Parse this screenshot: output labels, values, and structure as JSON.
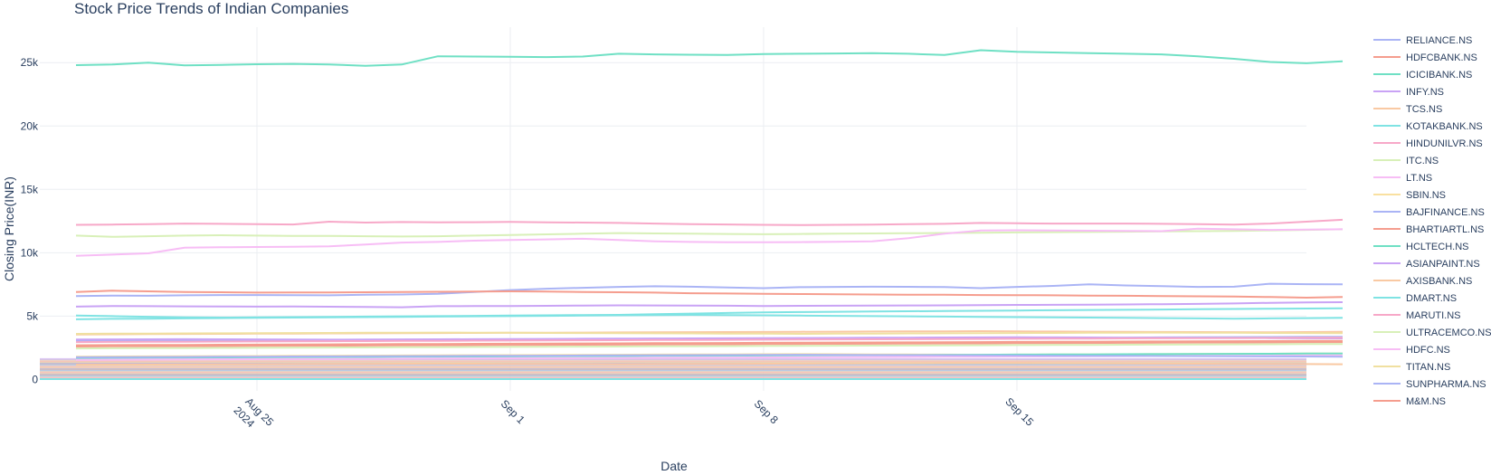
{
  "chart_data": {
    "type": "line",
    "title": "Stock Price Trends of Indian Companies",
    "xlabel": "Date",
    "ylabel": "Closing Price(INR)",
    "x_start": "2024-08-20",
    "x_end": "2024-09-23",
    "xlim": [
      "2024-08-19",
      "2024-09-23"
    ],
    "ylim": [
      -900,
      27800
    ],
    "x_ticks": [
      {
        "date": "2024-08-25",
        "label": "Aug 25",
        "sub": "2024"
      },
      {
        "date": "2024-09-01",
        "label": "Sep 1",
        "sub": ""
      },
      {
        "date": "2024-09-08",
        "label": "Sep 8",
        "sub": ""
      },
      {
        "date": "2024-09-15",
        "label": "Sep 15",
        "sub": ""
      }
    ],
    "y_ticks": [
      {
        "value": 0,
        "label": "0"
      },
      {
        "value": 5000,
        "label": "5k"
      },
      {
        "value": 10000,
        "label": "10k"
      },
      {
        "value": 15000,
        "label": "15k"
      },
      {
        "value": 20000,
        "label": "20k"
      },
      {
        "value": 25000,
        "label": "25k"
      }
    ],
    "grid": true,
    "legend_position": "right",
    "series": [
      {
        "name": "RELIANCE.NS",
        "color": "#aab4f5",
        "values": [
          6580,
          6620,
          6600,
          6640,
          6660,
          6660,
          6650,
          6640,
          6680,
          6700,
          6760,
          6900,
          7050,
          7160,
          7230,
          7300,
          7350,
          7320,
          7260,
          7200,
          7280,
          7300,
          7320,
          7310,
          7290,
          7200,
          7300,
          7380,
          7500,
          7420,
          7360,
          7300,
          7320,
          7550,
          7520,
          7500
        ]
      },
      {
        "name": "HDFCBANK.NS",
        "color": "#f59d8e",
        "values": [
          6900,
          7000,
          6950,
          6900,
          6880,
          6850,
          6870,
          6860,
          6880,
          6900,
          6920,
          6930,
          6950,
          6940,
          6900,
          6880,
          6850,
          6800,
          6780,
          6760,
          6740,
          6720,
          6700,
          6680,
          6680,
          6660,
          6650,
          6640,
          6620,
          6600,
          6580,
          6560,
          6540,
          6500,
          6450,
          6500
        ]
      },
      {
        "name": "ICICIBANK.NS",
        "color": "#6fe0c4",
        "values": [
          24800,
          24850,
          25000,
          24780,
          24820,
          24870,
          24900,
          24860,
          24750,
          24850,
          25500,
          25480,
          25460,
          25440,
          25480,
          25700,
          25650,
          25620,
          25600,
          25680,
          25700,
          25720,
          25750,
          25700,
          25600,
          25980,
          25850,
          25800,
          25750,
          25700,
          25650,
          25500,
          25300,
          25050,
          24950,
          25100
        ]
      },
      {
        "name": "INFY.NS",
        "color": "#c9a3f5",
        "values": [
          5750,
          5800,
          5780,
          5770,
          5760,
          5750,
          5760,
          5740,
          5720,
          5700,
          5780,
          5790,
          5800,
          5810,
          5830,
          5850,
          5840,
          5830,
          5820,
          5800,
          5810,
          5820,
          5830,
          5840,
          5850,
          5870,
          5880,
          5890,
          5900,
          5920,
          5940,
          5960,
          6000,
          6050,
          6080,
          6100
        ]
      },
      {
        "name": "TCS.NS",
        "color": "#f9c9a3",
        "values": [
          3550,
          3560,
          3580,
          3590,
          3600,
          3610,
          3620,
          3630,
          3640,
          3650,
          3660,
          3670,
          3680,
          3690,
          3700,
          3710,
          3720,
          3730,
          3740,
          3750,
          3760,
          3770,
          3780,
          3790,
          3800,
          3810,
          3790,
          3780,
          3770,
          3760,
          3750,
          3740,
          3730,
          3720,
          3740,
          3760
        ]
      },
      {
        "name": "KOTAKBANK.NS",
        "color": "#7fe3e3",
        "values": [
          5050,
          5000,
          4950,
          4900,
          4880,
          4900,
          4920,
          4940,
          4960,
          4980,
          5000,
          5020,
          5040,
          5060,
          5080,
          5100,
          5150,
          5200,
          5250,
          5300,
          5320,
          5340,
          5360,
          5380,
          5400,
          5420,
          5440,
          5460,
          5480,
          5500,
          5520,
          5540,
          5560,
          5580,
          5600,
          5620
        ]
      },
      {
        "name": "HINDUNILVR.NS",
        "color": "#f7a8c8",
        "values": [
          12200,
          12220,
          12250,
          12300,
          12280,
          12250,
          12230,
          12450,
          12380,
          12420,
          12400,
          12410,
          12430,
          12400,
          12380,
          12350,
          12300,
          12250,
          12230,
          12200,
          12180,
          12200,
          12220,
          12250,
          12280,
          12350,
          12320,
          12300,
          12300,
          12300,
          12280,
          12250,
          12220,
          12300,
          12450,
          12600
        ]
      },
      {
        "name": "ITC.NS",
        "color": "#d8f0b8",
        "values": [
          11350,
          11250,
          11300,
          11350,
          11380,
          11350,
          11330,
          11320,
          11300,
          11280,
          11300,
          11350,
          11400,
          11450,
          11500,
          11550,
          11520,
          11500,
          11480,
          11460,
          11480,
          11500,
          11520,
          11540,
          11560,
          11580,
          11600,
          11620,
          11640,
          11660,
          11680,
          11700,
          11720,
          11760,
          11800,
          11850
        ]
      },
      {
        "name": "LT.NS",
        "color": "#f7bdf5",
        "values": [
          9750,
          9850,
          9950,
          10400,
          10430,
          10450,
          10470,
          10500,
          10650,
          10800,
          10850,
          10950,
          11000,
          11050,
          11100,
          11000,
          10900,
          10850,
          10830,
          10820,
          10840,
          10860,
          10900,
          11150,
          11500,
          11750,
          11770,
          11760,
          11740,
          11720,
          11700,
          11900,
          11850,
          11800,
          11820,
          11850
        ]
      },
      {
        "name": "SBIN.NS",
        "color": "#f9e0a0",
        "values": [
          1800,
          1810,
          1820,
          1830,
          1840,
          1850,
          1860,
          1870,
          1880,
          1890,
          1900,
          1910,
          1920,
          1930,
          1940,
          1950,
          1960,
          1970,
          1980,
          1990,
          2000,
          1990,
          1980,
          1970,
          1960,
          1950,
          1960,
          1970,
          1980,
          1990,
          2000,
          2010,
          2020,
          2030,
          2040,
          2050
        ]
      },
      {
        "name": "BAJFINANCE.NS",
        "color": "#aab4f5",
        "values": [
          3050,
          3060,
          3070,
          3060,
          3050,
          3040,
          3050,
          3060,
          3070,
          3080,
          3100,
          3120,
          3140,
          3160,
          3180,
          3200,
          3220,
          3200,
          3180,
          3160,
          3170,
          3180,
          3190,
          3200,
          3210,
          3220,
          3240,
          3260,
          3280,
          3300,
          3320,
          3330,
          3340,
          3350,
          3360,
          3370
        ]
      },
      {
        "name": "BHARTIARTL.NS",
        "color": "#f59d8e",
        "values": [
          2600,
          2610,
          2620,
          2630,
          2640,
          2650,
          2660,
          2670,
          2680,
          2690,
          2700,
          2710,
          2720,
          2730,
          2740,
          2750,
          2760,
          2770,
          2780,
          2790,
          2800,
          2810,
          2820,
          2830,
          2840,
          2850,
          2860,
          2870,
          2880,
          2890,
          2900,
          2910,
          2920,
          2930,
          2940,
          2950
        ]
      },
      {
        "name": "HCLTECH.NS",
        "color": "#6fe0c4",
        "values": [
          1700,
          1710,
          1720,
          1730,
          1740,
          1750,
          1760,
          1770,
          1780,
          1790,
          1800,
          1810,
          1820,
          1830,
          1840,
          1850,
          1860,
          1870,
          1880,
          1890,
          1900,
          1910,
          1920,
          1930,
          1940,
          1950,
          1960,
          1970,
          1980,
          1990,
          2000,
          2010,
          2020,
          2030,
          2040,
          2050
        ]
      },
      {
        "name": "ASIANPAINT.NS",
        "color": "#c9a3f5",
        "values": [
          3150,
          3160,
          3170,
          3180,
          3170,
          3160,
          3150,
          3140,
          3150,
          3160,
          3170,
          3180,
          3190,
          3200,
          3210,
          3220,
          3230,
          3240,
          3250,
          3260,
          3270,
          3280,
          3290,
          3300,
          3310,
          3320,
          3330,
          3320,
          3310,
          3300,
          3290,
          3280,
          3270,
          3260,
          3250,
          3240
        ]
      },
      {
        "name": "AXISBANK.NS",
        "color": "#f9c9a3",
        "values": [
          1150,
          1160,
          1170,
          1180,
          1190,
          1200,
          1210,
          1220,
          1230,
          1240,
          1250,
          1240,
          1230,
          1220,
          1210,
          1200,
          1210,
          1220,
          1230,
          1240,
          1250,
          1260,
          1270,
          1280,
          1290,
          1300,
          1290,
          1280,
          1270,
          1260,
          1250,
          1240,
          1230,
          1220,
          1210,
          1200
        ]
      },
      {
        "name": "DMART.NS",
        "color": "#7fe3e3",
        "values": [
          4750,
          4780,
          4800,
          4820,
          4840,
          4860,
          4880,
          4900,
          4920,
          4940,
          4960,
          4980,
          5000,
          5020,
          5040,
          5060,
          5080,
          5100,
          5080,
          5060,
          5040,
          5020,
          5000,
          4980,
          4960,
          4940,
          4920,
          4900,
          4880,
          4860,
          4840,
          4820,
          4800,
          4820,
          4840,
          4860
        ]
      },
      {
        "name": "MARUTI.NS",
        "color": "#f7a8c8",
        "values": [
          2950,
          2960,
          2970,
          2980,
          2990,
          3000,
          3010,
          3020,
          3030,
          3040,
          3050,
          3060,
          3070,
          3080,
          3090,
          3100,
          3110,
          3120,
          3130,
          3140,
          3150,
          3160,
          3170,
          3180,
          3190,
          3200,
          3210,
          3220,
          3230,
          3240,
          3250,
          3260,
          3270,
          3280,
          3290,
          3300
        ]
      },
      {
        "name": "ULTRACEMCO.NS",
        "color": "#d8f0b8",
        "values": [
          2450,
          2460,
          2470,
          2480,
          2490,
          2500,
          2510,
          2520,
          2530,
          2540,
          2550,
          2560,
          2570,
          2580,
          2590,
          2600,
          2610,
          2620,
          2630,
          2640,
          2650,
          2660,
          2670,
          2680,
          2690,
          2700,
          2710,
          2720,
          2730,
          2740,
          2750,
          2760,
          2770,
          2780,
          2790,
          2800
        ]
      },
      {
        "name": "HDFC.NS",
        "color": "#f7bdf5",
        "values": [
          1550,
          1560,
          1570,
          1580,
          1590,
          1600,
          1610,
          1620,
          1630,
          1640,
          1650,
          1660,
          1670,
          1680,
          1690,
          1700,
          1710,
          1720,
          1730,
          1740,
          1750,
          1760,
          1770,
          1780,
          1790,
          1800,
          1810,
          1820,
          1830,
          1840,
          1850,
          1860,
          1870,
          1880,
          1890,
          1900
        ]
      },
      {
        "name": "TITAN.NS",
        "color": "#f0e0a0",
        "values": [
          3600,
          3610,
          3620,
          3630,
          3640,
          3650,
          3660,
          3670,
          3680,
          3690,
          3700,
          3690,
          3680,
          3670,
          3660,
          3650,
          3640,
          3630,
          3620,
          3610,
          3600,
          3610,
          3620,
          3630,
          3640,
          3650,
          3660,
          3670,
          3680,
          3690,
          3700,
          3690,
          3680,
          3670,
          3660,
          3650
        ]
      },
      {
        "name": "SUNPHARMA.NS",
        "color": "#aab4f5",
        "values": [
          1750,
          1760,
          1770,
          1780,
          1790,
          1800,
          1810,
          1820,
          1830,
          1840,
          1850,
          1860,
          1870,
          1880,
          1890,
          1900,
          1910,
          1920,
          1930,
          1940,
          1950,
          1940,
          1930,
          1920,
          1910,
          1900,
          1890,
          1880,
          1870,
          1860,
          1850,
          1840,
          1830,
          1820,
          1810,
          1800
        ]
      },
      {
        "name": "M&M.NS",
        "color": "#f59d8e",
        "values": [
          2700,
          2710,
          2720,
          2730,
          2740,
          2750,
          2760,
          2770,
          2780,
          2790,
          2800,
          2810,
          2820,
          2830,
          2840,
          2850,
          2860,
          2870,
          2880,
          2890,
          2900,
          2910,
          2920,
          2930,
          2940,
          2950,
          2960,
          2970,
          2980,
          2990,
          3000,
          3010,
          3020,
          3030,
          3040,
          3050
        ]
      }
    ]
  }
}
